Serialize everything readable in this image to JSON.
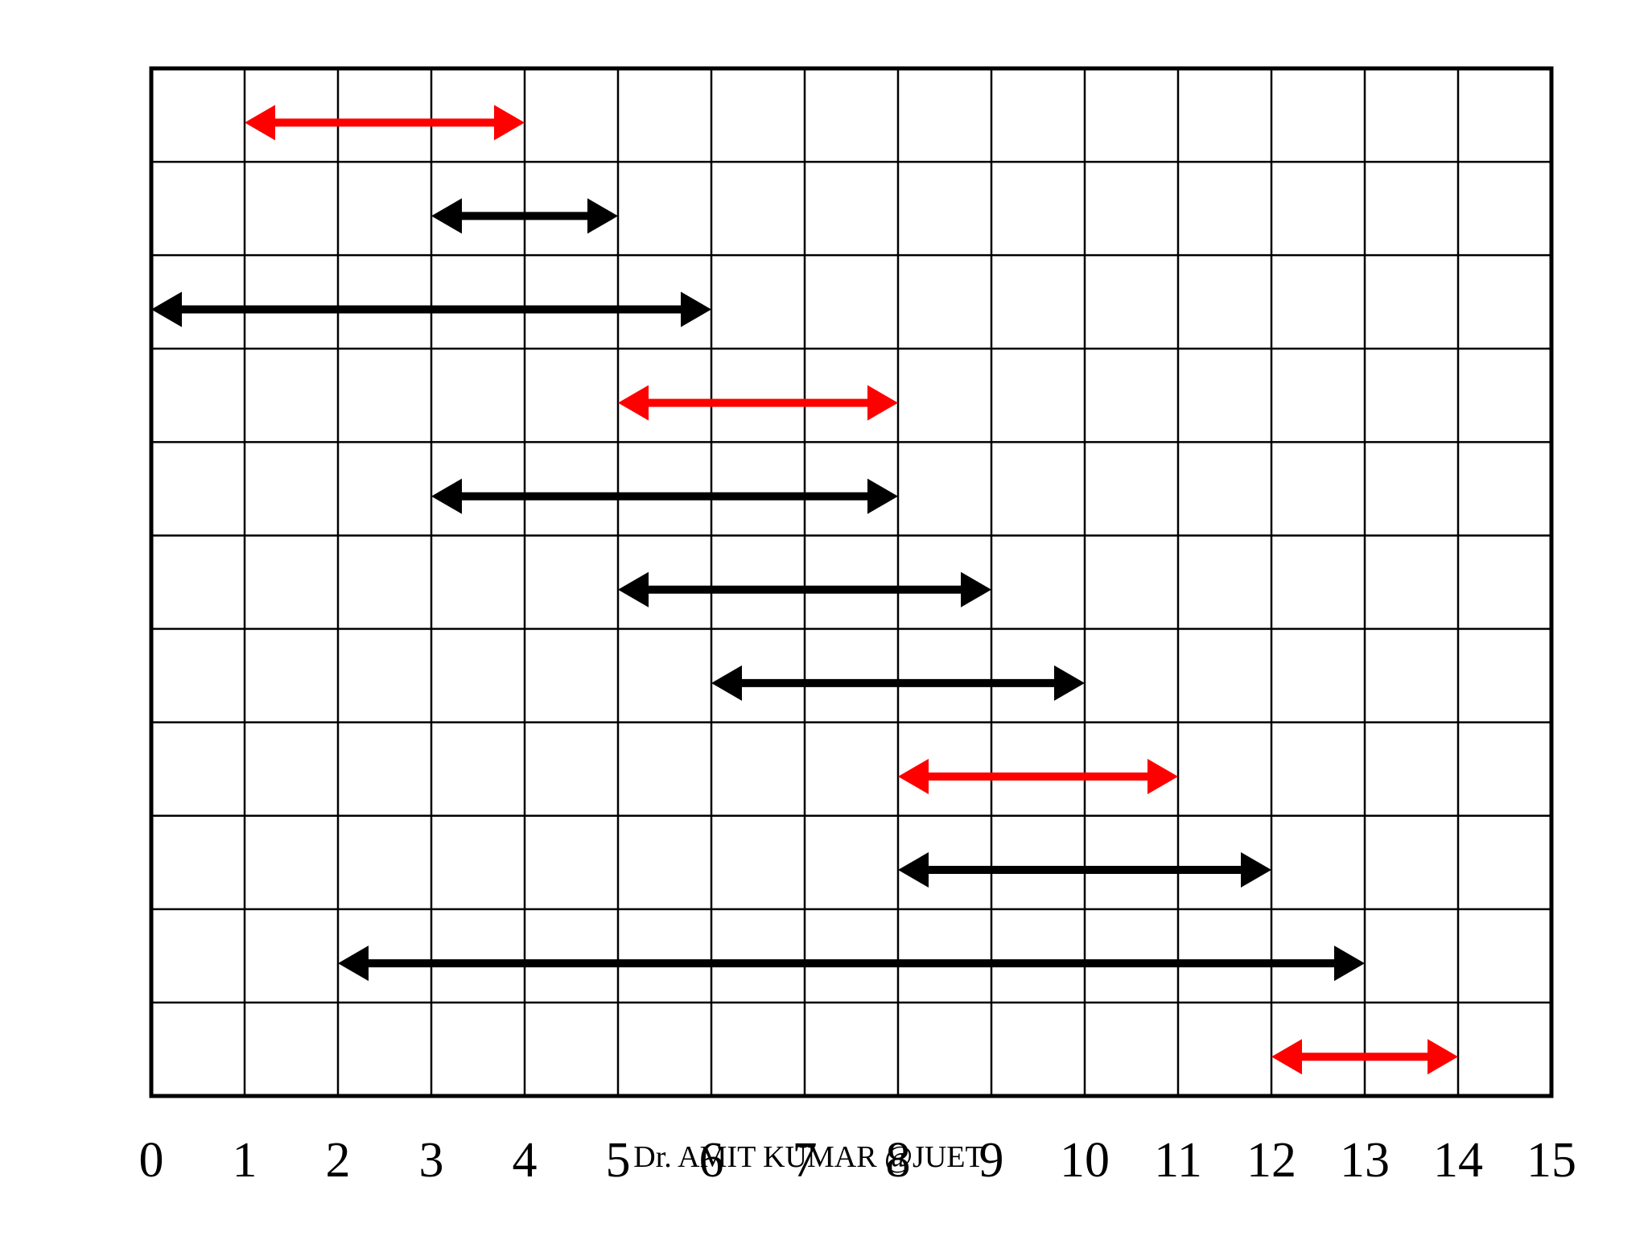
{
  "chart_data": {
    "type": "interval-diagram",
    "x_ticks": [
      "0",
      "1",
      "2",
      "3",
      "4",
      "5",
      "6",
      "7",
      "8",
      "9",
      "10",
      "11",
      "12",
      "13",
      "14",
      "15"
    ],
    "xlim": [
      0,
      15
    ],
    "rows": 11,
    "grid": true,
    "colors": {
      "selected": "#ff0000",
      "other": "#000000",
      "grid": "#000000"
    },
    "intervals": [
      {
        "start": 1,
        "end": 4,
        "selected": true
      },
      {
        "start": 3,
        "end": 5,
        "selected": false
      },
      {
        "start": 0,
        "end": 6,
        "selected": false
      },
      {
        "start": 5,
        "end": 8,
        "selected": true
      },
      {
        "start": 3,
        "end": 8,
        "selected": false
      },
      {
        "start": 5,
        "end": 9,
        "selected": false
      },
      {
        "start": 6,
        "end": 10,
        "selected": false
      },
      {
        "start": 8,
        "end": 11,
        "selected": true
      },
      {
        "start": 8,
        "end": 12,
        "selected": false
      },
      {
        "start": 2,
        "end": 13,
        "selected": false
      },
      {
        "start": 12,
        "end": 14,
        "selected": true
      }
    ]
  },
  "footer": {
    "watermark": "Dr. AMIT KUMAR @JUET"
  }
}
